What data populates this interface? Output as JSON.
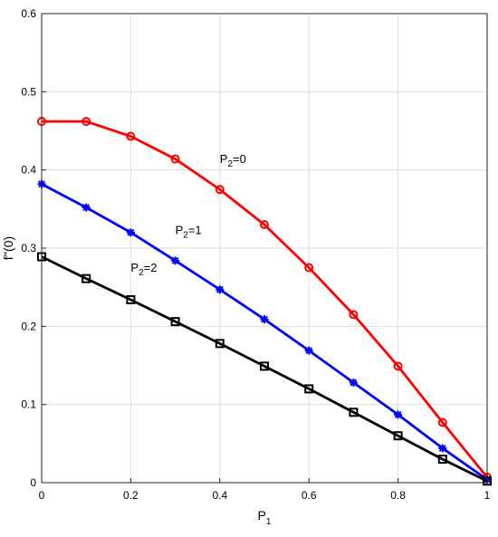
{
  "chart_data": {
    "type": "line",
    "xlabel": "P",
    "xlabel_sub": "1",
    "ylabel": "f''(0)",
    "xlim": [
      0,
      1
    ],
    "ylim": [
      0,
      0.6
    ],
    "xticks": [
      0,
      0.2,
      0.4,
      0.6,
      0.8,
      1
    ],
    "xtick_labels": [
      "0",
      "0.2",
      "0.4",
      "0.6",
      "0.8",
      "1"
    ],
    "yticks": [
      0,
      0.1,
      0.2,
      0.3,
      0.4,
      0.5,
      0.6
    ],
    "ytick_labels": [
      "0",
      "0.1",
      "0.2",
      "0.3",
      "0.4",
      "0.5",
      "0.6"
    ],
    "grid": true,
    "x": [
      0,
      0.1,
      0.2,
      0.3,
      0.4,
      0.5,
      0.6,
      0.7,
      0.8,
      0.9,
      1.0
    ],
    "series": [
      {
        "color": "#ff0000",
        "marker": "circle",
        "values": [
          0.462,
          0.462,
          0.443,
          0.414,
          0.375,
          0.33,
          0.275,
          0.215,
          0.149,
          0.077,
          0.007
        ]
      },
      {
        "color": "#0000ff",
        "marker": "star",
        "values": [
          0.382,
          0.352,
          0.32,
          0.284,
          0.247,
          0.209,
          0.169,
          0.128,
          0.087,
          0.044,
          0.004
        ]
      },
      {
        "color": "#000000",
        "marker": "square",
        "values": [
          0.289,
          0.261,
          0.234,
          0.206,
          0.178,
          0.149,
          0.12,
          0.09,
          0.06,
          0.03,
          0.002
        ]
      }
    ],
    "annotations": [
      {
        "text": "P",
        "sub": "2",
        "tail": "=0",
        "x": 0.4,
        "y": 0.409
      },
      {
        "text": "P",
        "sub": "2",
        "tail": "=1",
        "x": 0.3,
        "y": 0.318
      },
      {
        "text": "P",
        "sub": "2",
        "tail": "=2",
        "x": 0.2,
        "y": 0.27
      }
    ]
  }
}
